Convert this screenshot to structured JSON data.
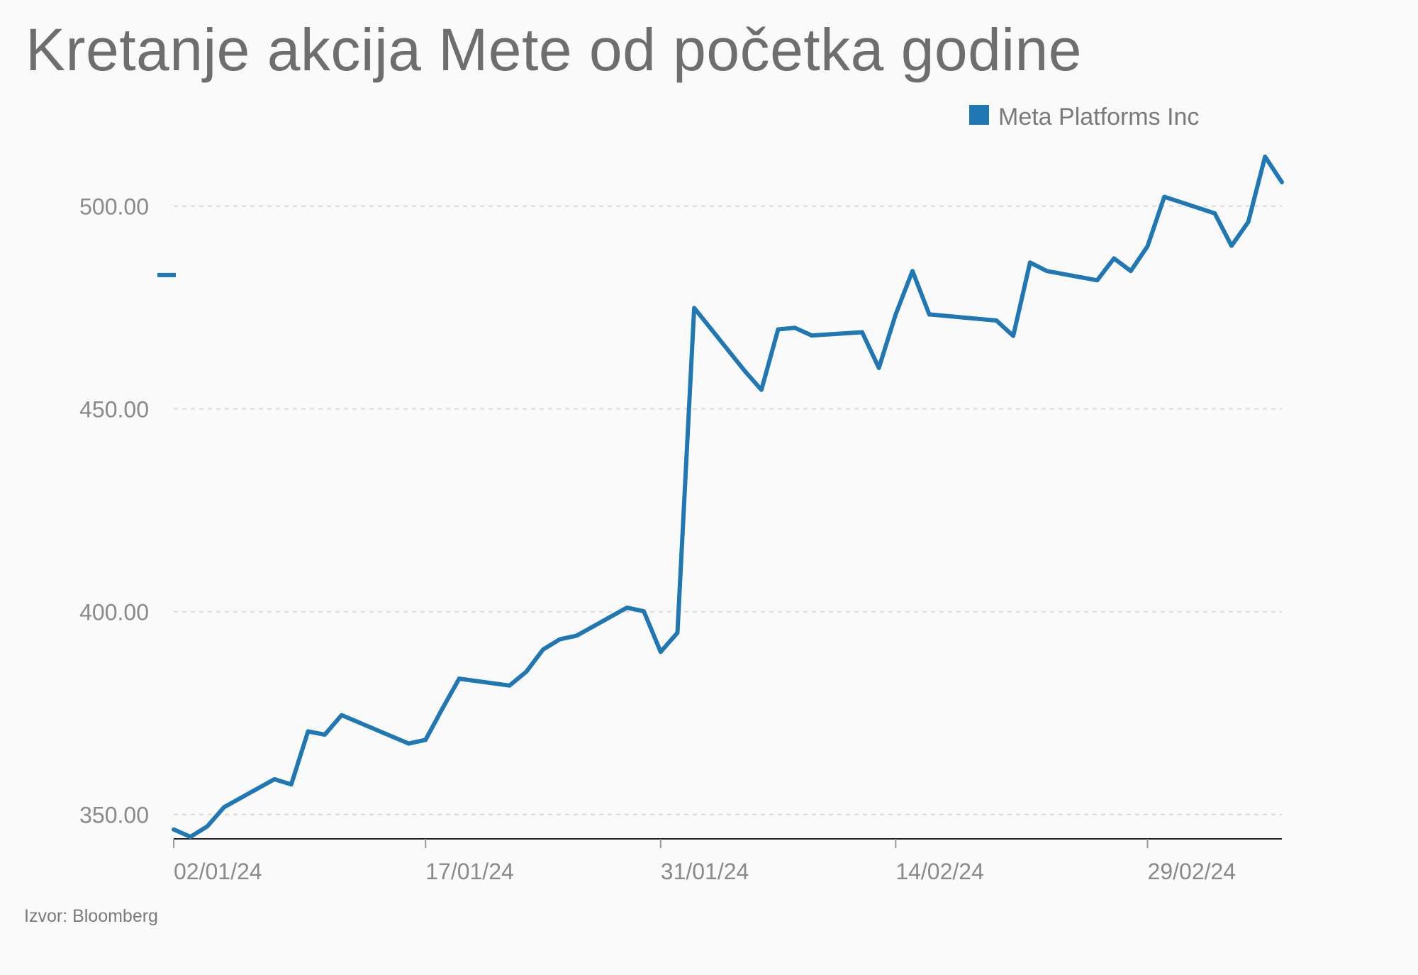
{
  "chart_data": {
    "type": "line",
    "title": "Kretanje akcija Mete od početka godine",
    "xlabel": "",
    "ylabel": "",
    "source": "Izvor: Bloomberg",
    "legend": {
      "placement": "top-right"
    },
    "grid": {
      "y": true,
      "x": false
    },
    "ylim": [
      344,
      512
    ],
    "y_ticks": [
      350,
      400,
      450,
      500
    ],
    "y_tick_labels": [
      "350.00",
      "400.00",
      "450.00",
      "500.00"
    ],
    "x_range": [
      "2024-01-02",
      "2024-03-08"
    ],
    "x_ticks": [
      "2024-01-02",
      "2024-01-17",
      "2024-01-31",
      "2024-02-14",
      "2024-02-29"
    ],
    "x_tick_labels": [
      "02/01/24",
      "17/01/24",
      "31/01/24",
      "14/02/24",
      "29/02/24"
    ],
    "marker": {
      "value": 483,
      "color": "#1f77b4"
    },
    "series": [
      {
        "name": "Meta Platforms Inc",
        "color": "#1f77b4",
        "x": [
          "2024-01-02",
          "2024-01-03",
          "2024-01-04",
          "2024-01-05",
          "2024-01-08",
          "2024-01-09",
          "2024-01-10",
          "2024-01-11",
          "2024-01-12",
          "2024-01-16",
          "2024-01-17",
          "2024-01-18",
          "2024-01-19",
          "2024-01-22",
          "2024-01-23",
          "2024-01-24",
          "2024-01-25",
          "2024-01-26",
          "2024-01-29",
          "2024-01-30",
          "2024-01-31",
          "2024-02-01",
          "2024-02-02",
          "2024-02-05",
          "2024-02-06",
          "2024-02-07",
          "2024-02-08",
          "2024-02-09",
          "2024-02-12",
          "2024-02-13",
          "2024-02-14",
          "2024-02-15",
          "2024-02-16",
          "2024-02-20",
          "2024-02-21",
          "2024-02-22",
          "2024-02-23",
          "2024-02-26",
          "2024-02-27",
          "2024-02-28",
          "2024-02-29",
          "2024-03-01",
          "2024-03-04",
          "2024-03-05",
          "2024-03-06",
          "2024-03-07",
          "2024-03-08"
        ],
        "values": [
          346.3,
          344.5,
          347.1,
          351.8,
          358.7,
          357.4,
          370.5,
          369.7,
          374.5,
          367.5,
          368.4,
          376.1,
          383.5,
          381.8,
          385.2,
          390.7,
          393.2,
          394.1,
          401.0,
          400.1,
          390.1,
          394.8,
          474.9,
          459.4,
          454.7,
          469.6,
          470.0,
          468.1,
          468.9,
          460.1,
          473.3,
          484.0,
          473.3,
          471.8,
          468.0,
          486.1,
          484.0,
          481.7,
          487.1,
          484.0,
          490.1,
          502.3,
          498.2,
          490.2,
          496.1,
          512.2,
          505.9
        ]
      }
    ]
  }
}
